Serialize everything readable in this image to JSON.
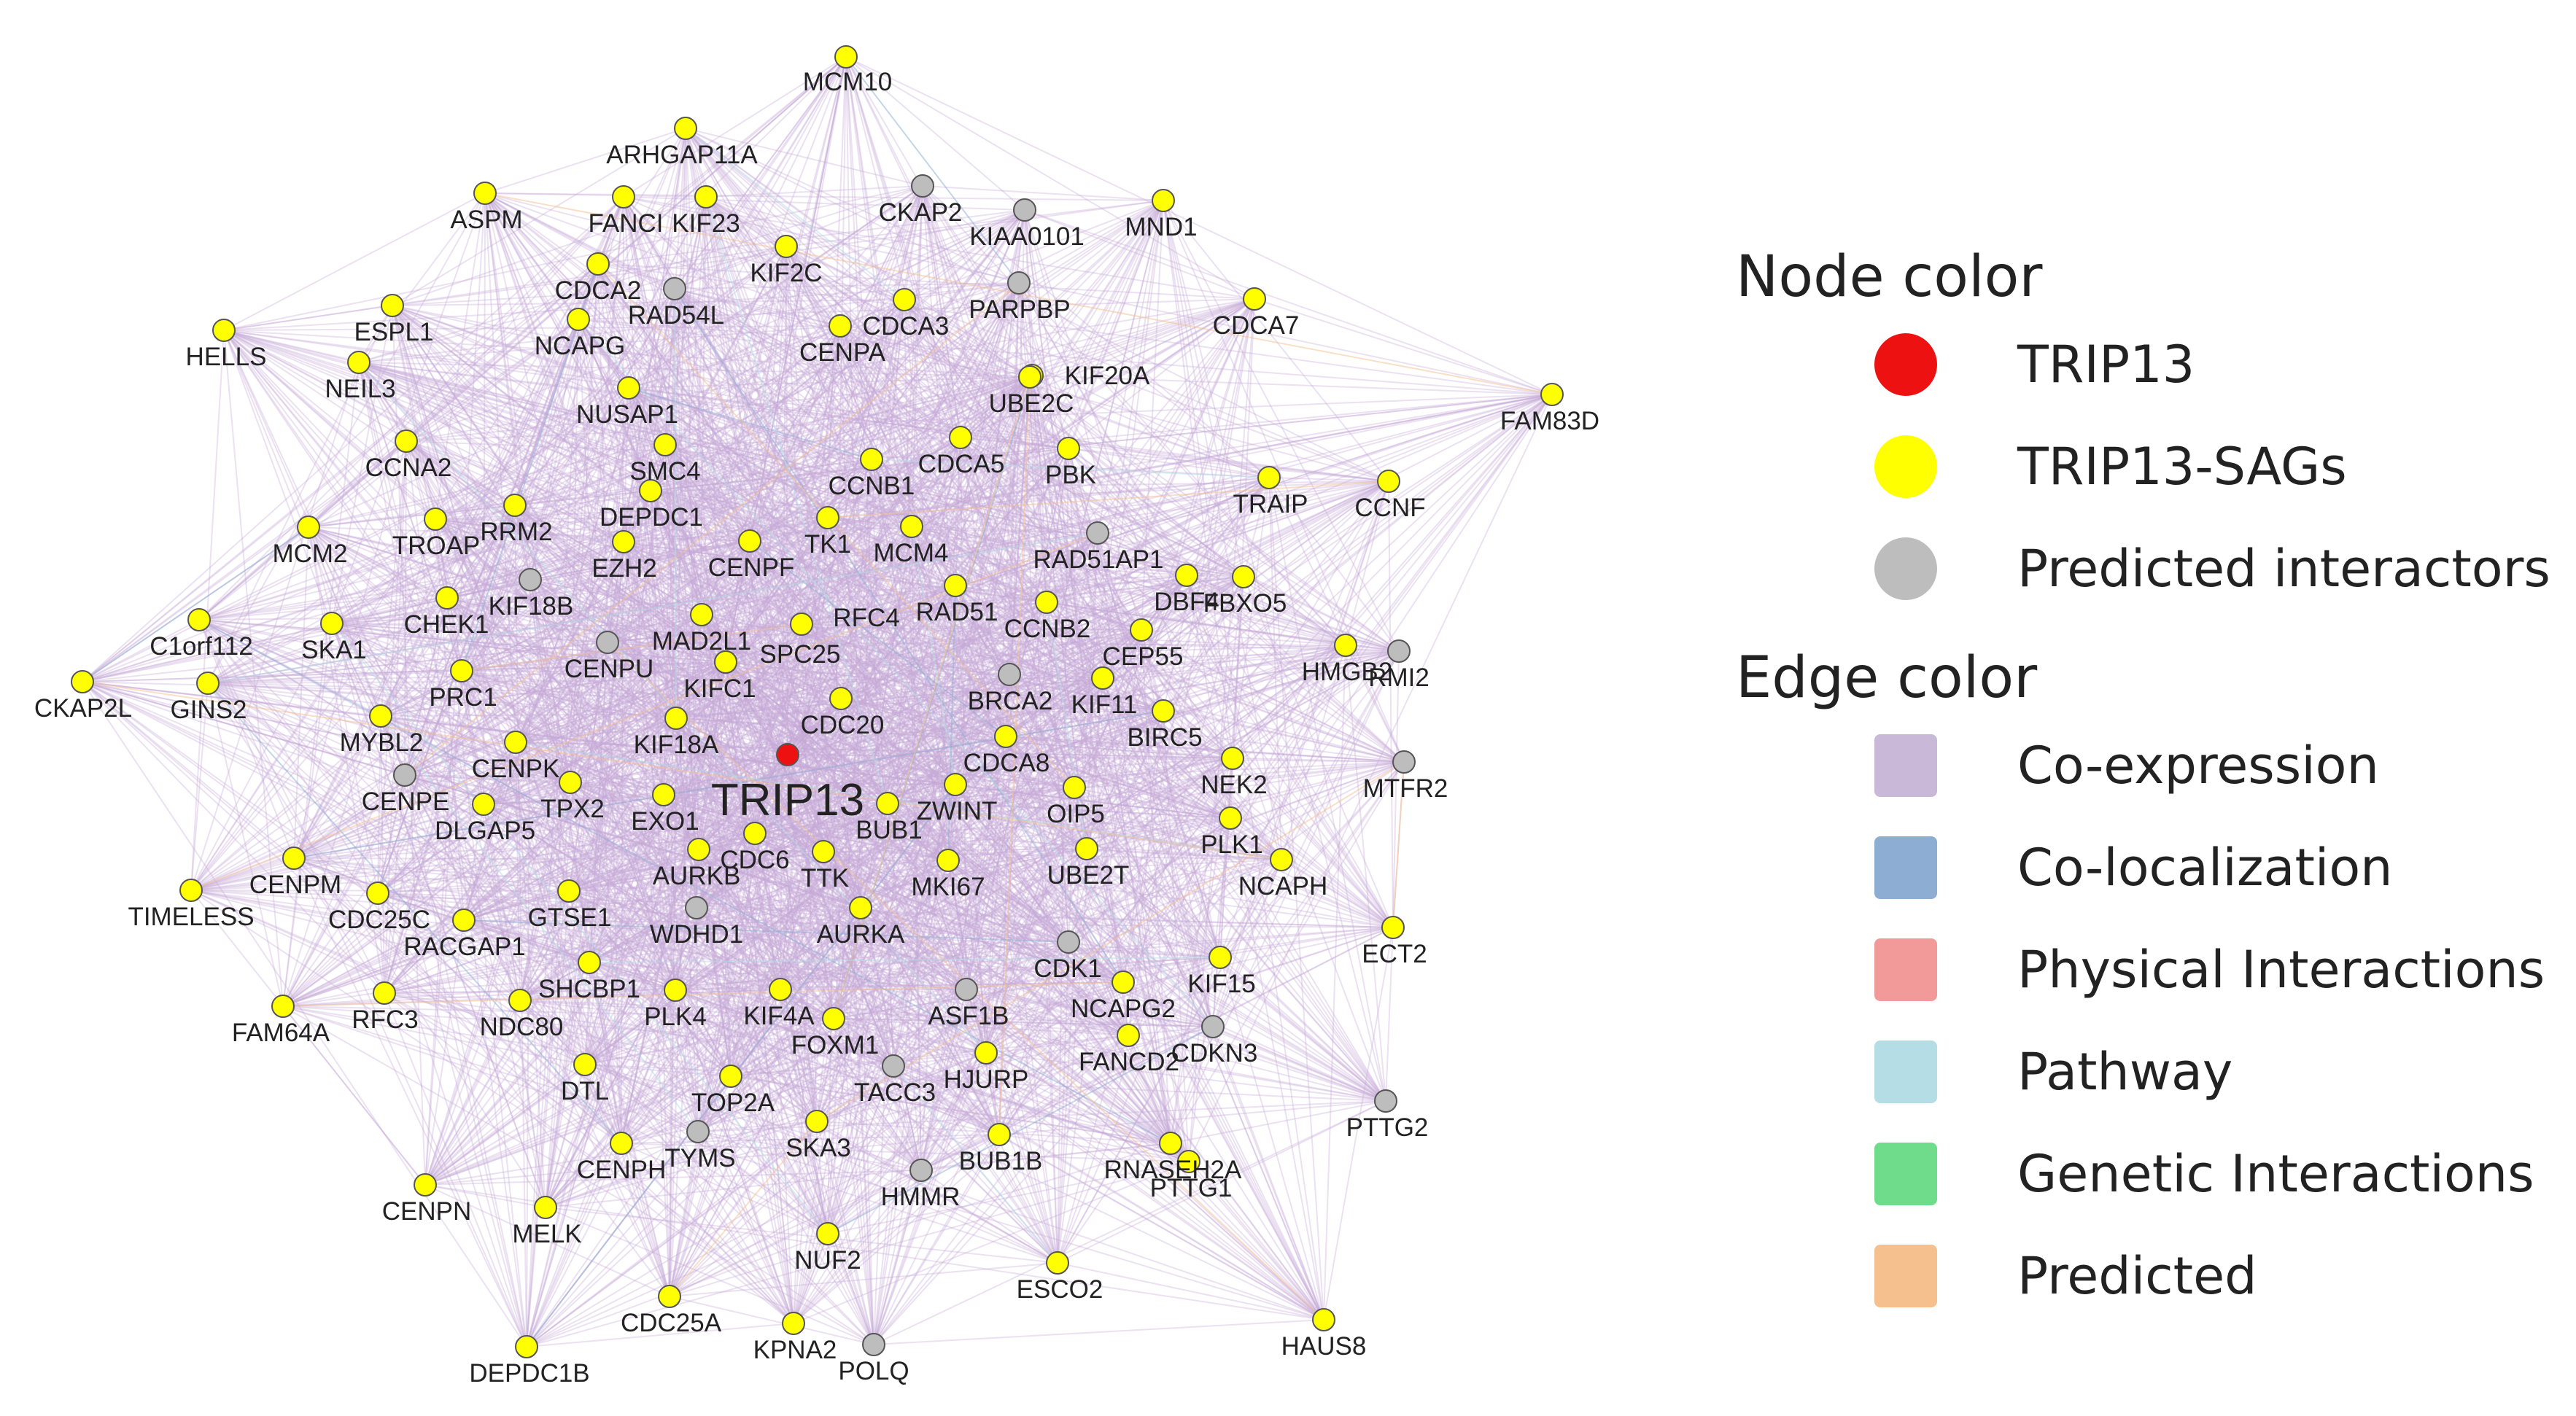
{
  "network": {
    "center_node": "TRIP13",
    "node_colors": {
      "TRIP13": "#ee1111",
      "TRIP13-SAGs": "#ffff00",
      "Predicted interactors": "#bdbdbd"
    },
    "edge_color": "#c7a9d6",
    "nodes": [
      {
        "label": "MCM10",
        "type": "TRIP13-SAGs"
      },
      {
        "label": "ARHGAP11A",
        "type": "TRIP13-SAGs"
      },
      {
        "label": "ASPM",
        "type": "TRIP13-SAGs"
      },
      {
        "label": "FANCI",
        "type": "TRIP13-SAGs"
      },
      {
        "label": "KIF23",
        "type": "TRIP13-SAGs"
      },
      {
        "label": "CKAP2",
        "type": "Predicted interactors"
      },
      {
        "label": "KIAA0101",
        "type": "Predicted interactors"
      },
      {
        "label": "MND1",
        "type": "TRIP13-SAGs"
      },
      {
        "label": "KIF2C",
        "type": "TRIP13-SAGs"
      },
      {
        "label": "CDCA2",
        "type": "TRIP13-SAGs"
      },
      {
        "label": "RAD54L",
        "type": "Predicted interactors"
      },
      {
        "label": "PARPBP",
        "type": "Predicted interactors"
      },
      {
        "label": "CDCA7",
        "type": "TRIP13-SAGs"
      },
      {
        "label": "HELLS",
        "type": "TRIP13-SAGs"
      },
      {
        "label": "ESPL1",
        "type": "TRIP13-SAGs"
      },
      {
        "label": "NCAPG",
        "type": "TRIP13-SAGs"
      },
      {
        "label": "CDCA3",
        "type": "TRIP13-SAGs"
      },
      {
        "label": "CENPA",
        "type": "TRIP13-SAGs"
      },
      {
        "label": "KIF20A",
        "type": "TRIP13-SAGs"
      },
      {
        "label": "NEIL3",
        "type": "TRIP13-SAGs"
      },
      {
        "label": "UBE2C",
        "type": "TRIP13-SAGs"
      },
      {
        "label": "FAM83D",
        "type": "TRIP13-SAGs"
      },
      {
        "label": "NUSAP1",
        "type": "TRIP13-SAGs"
      },
      {
        "label": "SMC4",
        "type": "TRIP13-SAGs"
      },
      {
        "label": "CCNA2",
        "type": "TRIP13-SAGs"
      },
      {
        "label": "CDCA5",
        "type": "TRIP13-SAGs"
      },
      {
        "label": "PBK",
        "type": "TRIP13-SAGs"
      },
      {
        "label": "CCNB1",
        "type": "TRIP13-SAGs"
      },
      {
        "label": "TRAIP",
        "type": "TRIP13-SAGs"
      },
      {
        "label": "CCNF",
        "type": "TRIP13-SAGs"
      },
      {
        "label": "RRM2",
        "type": "TRIP13-SAGs"
      },
      {
        "label": "DEPDC1",
        "type": "TRIP13-SAGs"
      },
      {
        "label": "TK1",
        "type": "TRIP13-SAGs"
      },
      {
        "label": "MCM2",
        "type": "TRIP13-SAGs"
      },
      {
        "label": "TROAP",
        "type": "TRIP13-SAGs"
      },
      {
        "label": "EZH2",
        "type": "TRIP13-SAGs"
      },
      {
        "label": "CENPF",
        "type": "TRIP13-SAGs"
      },
      {
        "label": "MCM4",
        "type": "TRIP13-SAGs"
      },
      {
        "label": "RAD51AP1",
        "type": "Predicted interactors"
      },
      {
        "label": "KIF18B",
        "type": "Predicted interactors"
      },
      {
        "label": "DBF4",
        "type": "TRIP13-SAGs"
      },
      {
        "label": "FBXO5",
        "type": "TRIP13-SAGs"
      },
      {
        "label": "CHEK1",
        "type": "TRIP13-SAGs"
      },
      {
        "label": "RFC4",
        "type": "TRIP13-SAGs"
      },
      {
        "label": "RAD51",
        "type": "TRIP13-SAGs"
      },
      {
        "label": "C1orf112",
        "type": "TRIP13-SAGs"
      },
      {
        "label": "SKA1",
        "type": "TRIP13-SAGs"
      },
      {
        "label": "CENPU",
        "type": "Predicted interactors"
      },
      {
        "label": "MAD2L1",
        "type": "TRIP13-SAGs"
      },
      {
        "label": "CCNB2",
        "type": "TRIP13-SAGs"
      },
      {
        "label": "CEP55",
        "type": "TRIP13-SAGs"
      },
      {
        "label": "SPC25",
        "type": "TRIP13-SAGs"
      },
      {
        "label": "HMGB2",
        "type": "TRIP13-SAGs"
      },
      {
        "label": "RMI2",
        "type": "Predicted interactors"
      },
      {
        "label": "CKAP2L",
        "type": "TRIP13-SAGs"
      },
      {
        "label": "GINS2",
        "type": "TRIP13-SAGs"
      },
      {
        "label": "PRC1",
        "type": "TRIP13-SAGs"
      },
      {
        "label": "KIFC1",
        "type": "TRIP13-SAGs"
      },
      {
        "label": "BRCA2",
        "type": "Predicted interactors"
      },
      {
        "label": "KIF11",
        "type": "TRIP13-SAGs"
      },
      {
        "label": "MYBL2",
        "type": "TRIP13-SAGs"
      },
      {
        "label": "KIF18A",
        "type": "TRIP13-SAGs"
      },
      {
        "label": "CDC20",
        "type": "TRIP13-SAGs"
      },
      {
        "label": "BIRC5",
        "type": "TRIP13-SAGs"
      },
      {
        "label": "CENPK",
        "type": "TRIP13-SAGs"
      },
      {
        "label": "MTFR2",
        "type": "Predicted interactors"
      },
      {
        "label": "CENPE",
        "type": "Predicted interactors"
      },
      {
        "label": "CDCA8",
        "type": "TRIP13-SAGs"
      },
      {
        "label": "NEK2",
        "type": "TRIP13-SAGs"
      },
      {
        "label": "TPX2",
        "type": "TRIP13-SAGs"
      },
      {
        "label": "DLGAP5",
        "type": "TRIP13-SAGs"
      },
      {
        "label": "EXO1",
        "type": "TRIP13-SAGs"
      },
      {
        "label": "ZWINT",
        "type": "TRIP13-SAGs"
      },
      {
        "label": "BUB1",
        "type": "TRIP13-SAGs"
      },
      {
        "label": "OIP5",
        "type": "TRIP13-SAGs"
      },
      {
        "label": "PLK1",
        "type": "TRIP13-SAGs"
      },
      {
        "label": "CDC6",
        "type": "TRIP13-SAGs"
      },
      {
        "label": "TIMELESS",
        "type": "TRIP13-SAGs"
      },
      {
        "label": "CENPM",
        "type": "TRIP13-SAGs"
      },
      {
        "label": "AURKB",
        "type": "TRIP13-SAGs"
      },
      {
        "label": "TTK",
        "type": "TRIP13-SAGs"
      },
      {
        "label": "MKI67",
        "type": "TRIP13-SAGs"
      },
      {
        "label": "UBE2T",
        "type": "TRIP13-SAGs"
      },
      {
        "label": "NCAPH",
        "type": "TRIP13-SAGs"
      },
      {
        "label": "CDC25C",
        "type": "TRIP13-SAGs"
      },
      {
        "label": "GTSE1",
        "type": "TRIP13-SAGs"
      },
      {
        "label": "WDHD1",
        "type": "Predicted interactors"
      },
      {
        "label": "AURKA",
        "type": "TRIP13-SAGs"
      },
      {
        "label": "ECT2",
        "type": "TRIP13-SAGs"
      },
      {
        "label": "RACGAP1",
        "type": "TRIP13-SAGs"
      },
      {
        "label": "CDK1",
        "type": "Predicted interactors"
      },
      {
        "label": "KIF15",
        "type": "TRIP13-SAGs"
      },
      {
        "label": "FAM64A",
        "type": "TRIP13-SAGs"
      },
      {
        "label": "RFC3",
        "type": "TRIP13-SAGs"
      },
      {
        "label": "SHCBP1",
        "type": "TRIP13-SAGs"
      },
      {
        "label": "NDC80",
        "type": "TRIP13-SAGs"
      },
      {
        "label": "PLK4",
        "type": "TRIP13-SAGs"
      },
      {
        "label": "KIF4A",
        "type": "TRIP13-SAGs"
      },
      {
        "label": "ASF1B",
        "type": "Predicted interactors"
      },
      {
        "label": "NCAPG2",
        "type": "TRIP13-SAGs"
      },
      {
        "label": "CDKN3",
        "type": "Predicted interactors"
      },
      {
        "label": "FOXM1",
        "type": "TRIP13-SAGs"
      },
      {
        "label": "FANCD2",
        "type": "TRIP13-SAGs"
      },
      {
        "label": "DTL",
        "type": "TRIP13-SAGs"
      },
      {
        "label": "TOP2A",
        "type": "TRIP13-SAGs"
      },
      {
        "label": "TACC3",
        "type": "Predicted interactors"
      },
      {
        "label": "HJURP",
        "type": "TRIP13-SAGs"
      },
      {
        "label": "PTTG2",
        "type": "Predicted interactors"
      },
      {
        "label": "CENPH",
        "type": "TRIP13-SAGs"
      },
      {
        "label": "TYMS",
        "type": "Predicted interactors"
      },
      {
        "label": "SKA3",
        "type": "TRIP13-SAGs"
      },
      {
        "label": "BUB1B",
        "type": "TRIP13-SAGs"
      },
      {
        "label": "RNASEH2A",
        "type": "TRIP13-SAGs"
      },
      {
        "label": "HMMR",
        "type": "Predicted interactors"
      },
      {
        "label": "PTTG1",
        "type": "TRIP13-SAGs"
      },
      {
        "label": "CENPN",
        "type": "TRIP13-SAGs"
      },
      {
        "label": "MELK",
        "type": "TRIP13-SAGs"
      },
      {
        "label": "NUF2",
        "type": "TRIP13-SAGs"
      },
      {
        "label": "ESCO2",
        "type": "TRIP13-SAGs"
      },
      {
        "label": "CDC25A",
        "type": "TRIP13-SAGs"
      },
      {
        "label": "KPNA2",
        "type": "TRIP13-SAGs"
      },
      {
        "label": "POLQ",
        "type": "Predicted interactors"
      },
      {
        "label": "HAUS8",
        "type": "TRIP13-SAGs"
      },
      {
        "label": "DEPDC1B",
        "type": "TRIP13-SAGs"
      }
    ]
  },
  "legend": {
    "node_title": "Node color",
    "node_items": [
      {
        "label": "TRIP13",
        "color": "#ee1111"
      },
      {
        "label": "TRIP13-SAGs",
        "color": "#ffff00"
      },
      {
        "label": "Predicted interactors",
        "color": "#bdbdbd"
      }
    ],
    "edge_title": "Edge color",
    "edge_items": [
      {
        "label": "Co-expression",
        "color": "#c9b8d8"
      },
      {
        "label": "Co-localization",
        "color": "#8eadd3"
      },
      {
        "label": "Physical Interactions",
        "color": "#f29a9a"
      },
      {
        "label": "Pathway",
        "color": "#b4dde6"
      },
      {
        "label": "Genetic Interactions",
        "color": "#6fdc8c"
      },
      {
        "label": "Predicted",
        "color": "#f5c08e"
      }
    ]
  }
}
